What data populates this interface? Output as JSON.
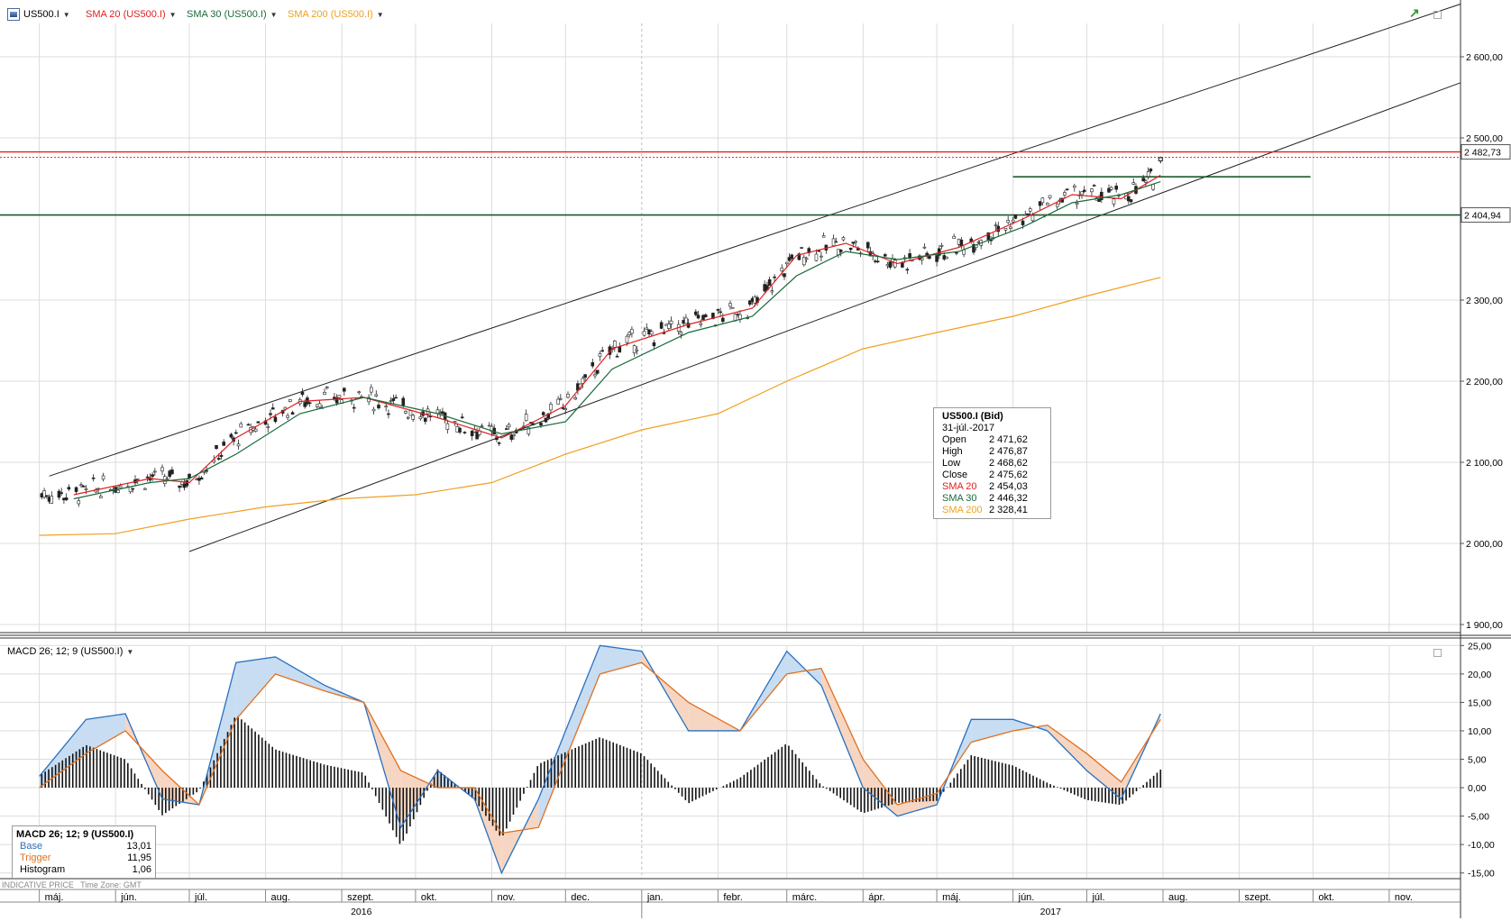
{
  "header": {
    "symbol": "US500.I",
    "indicators": [
      {
        "label": "SMA 20 (US500.I)",
        "color": "#e02020"
      },
      {
        "label": "SMA 30 (US500.I)",
        "color": "#1a6a3a"
      },
      {
        "label": "SMA 200 (US500.I)",
        "color": "#f0a020"
      }
    ]
  },
  "price_panel": {
    "y_ticks": [
      "2 600,00",
      "2 500,00",
      "2 300,00",
      "2 200,00",
      "2 100,00",
      "2 000,00",
      "1 900,00"
    ],
    "price_tags": [
      "2 482,73",
      "2 404,94"
    ],
    "info": {
      "title": "US500.I (Bid)",
      "date": "31-júl.-2017",
      "rows": [
        {
          "k": "Open",
          "v": "2 471,62",
          "color": "#000000"
        },
        {
          "k": "High",
          "v": "2 476,87",
          "color": "#000000"
        },
        {
          "k": "Low",
          "v": "2 468,62",
          "color": "#000000"
        },
        {
          "k": "Close",
          "v": "2 475,62",
          "color": "#000000"
        },
        {
          "k": "SMA 20",
          "v": "2 454,03",
          "color": "#e02020"
        },
        {
          "k": "SMA 30",
          "v": "2 446,32",
          "color": "#1a6a3a"
        },
        {
          "k": "SMA 200",
          "v": "2 328,41",
          "color": "#f0a020"
        }
      ]
    }
  },
  "macd_panel": {
    "title": "MACD 26; 12; 9 (US500.I)",
    "y_ticks": [
      "25,00",
      "20,00",
      "15,00",
      "10,00",
      "5,00",
      "0,00",
      "-5,00",
      "-10,00",
      "-15,00"
    ],
    "legend": {
      "title": "MACD 26; 12; 9 (US500.I)",
      "rows": [
        {
          "k": "Base",
          "v": "13,01",
          "color": "#2a70c0"
        },
        {
          "k": "Trigger",
          "v": "11,95",
          "color": "#e07020"
        },
        {
          "k": "Histogram",
          "v": "1,06",
          "color": "#000000"
        }
      ]
    },
    "footer": "INDICATIVE PRICE   Time Zone: GMT"
  },
  "x_axis": {
    "months": [
      "máj.",
      "jún.",
      "júl.",
      "aug.",
      "szept.",
      "okt.",
      "nov.",
      "dec.",
      "jan.",
      "febr.",
      "márc.",
      "ápr.",
      "máj.",
      "jún.",
      "júl.",
      "aug.",
      "szept.",
      "okt.",
      "nov."
    ],
    "years": [
      "2016",
      "2017"
    ]
  },
  "chart_data": [
    {
      "type": "line",
      "title": "US500.I",
      "series": [
        {
          "name": "SMA 20 (US500.I)",
          "color": "#e02020",
          "x": [
            "2016-05-15",
            "2016-06-15",
            "2016-07-01",
            "2016-07-20",
            "2016-08-15",
            "2016-09-10",
            "2016-10-10",
            "2016-11-05",
            "2016-12-01",
            "2016-12-20",
            "2017-01-20",
            "2017-02-15",
            "2017-03-05",
            "2017-03-25",
            "2017-04-15",
            "2017-05-10",
            "2017-06-05",
            "2017-06-25",
            "2017-07-15",
            "2017-07-31"
          ],
          "values": [
            2060,
            2080,
            2075,
            2130,
            2175,
            2180,
            2155,
            2130,
            2170,
            2240,
            2270,
            2290,
            2355,
            2370,
            2345,
            2365,
            2400,
            2430,
            2425,
            2454
          ]
        },
        {
          "name": "SMA 30 (US500.I)",
          "color": "#1a6a3a",
          "x": [
            "2016-05-15",
            "2016-06-15",
            "2016-07-01",
            "2016-07-20",
            "2016-08-15",
            "2016-09-10",
            "2016-10-10",
            "2016-11-05",
            "2016-12-01",
            "2016-12-20",
            "2017-01-20",
            "2017-02-15",
            "2017-03-05",
            "2017-03-25",
            "2017-04-15",
            "2017-05-10",
            "2017-06-05",
            "2017-06-25",
            "2017-07-15",
            "2017-07-31"
          ],
          "values": [
            2055,
            2075,
            2080,
            2110,
            2160,
            2180,
            2160,
            2135,
            2150,
            2215,
            2260,
            2280,
            2330,
            2360,
            2350,
            2360,
            2390,
            2420,
            2430,
            2446
          ]
        },
        {
          "name": "SMA 200 (US500.I)",
          "color": "#f0a020",
          "x": [
            "2016-05-01",
            "2016-06-01",
            "2016-07-01",
            "2016-08-01",
            "2016-09-01",
            "2016-10-01",
            "2016-11-01",
            "2016-12-01",
            "2017-01-01",
            "2017-02-01",
            "2017-03-01",
            "2017-04-01",
            "2017-05-01",
            "2017-06-01",
            "2017-07-01",
            "2017-07-31"
          ],
          "values": [
            2010,
            2012,
            2030,
            2045,
            2055,
            2060,
            2075,
            2110,
            2140,
            2160,
            2200,
            2240,
            2260,
            2280,
            2305,
            2328
          ]
        }
      ],
      "candles": [
        {
          "x": "2017-07-31",
          "open": 2471.62,
          "high": 2476.87,
          "low": 2468.62,
          "close": 2475.62
        }
      ],
      "horizontal_lines": [
        2482.73,
        2476,
        2404.94
      ],
      "ylim": [
        1890,
        2670
      ],
      "xlim": [
        "2016-05-01",
        "2017-11-30"
      ],
      "grid": true
    },
    {
      "type": "line",
      "title": "MACD 26; 12; 9 (US500.I)",
      "series": [
        {
          "name": "Base",
          "color": "#2a70c0",
          "x": [
            "2016-05-01",
            "2016-05-20",
            "2016-06-05",
            "2016-06-20",
            "2016-07-05",
            "2016-07-20",
            "2016-08-05",
            "2016-08-25",
            "2016-09-10",
            "2016-09-25",
            "2016-10-10",
            "2016-10-25",
            "2016-11-05",
            "2016-11-20",
            "2016-12-01",
            "2016-12-15",
            "2017-01-01",
            "2017-01-20",
            "2017-02-10",
            "2017-03-01",
            "2017-03-15",
            "2017-04-01",
            "2017-04-15",
            "2017-05-01",
            "2017-05-15",
            "2017-06-01",
            "2017-06-15",
            "2017-07-01",
            "2017-07-15",
            "2017-07-31"
          ],
          "values": [
            2,
            12,
            13,
            -2,
            -3,
            22,
            23,
            18,
            15,
            -7,
            3,
            -2,
            -15,
            -2,
            10,
            25,
            24,
            10,
            10,
            24,
            18,
            0,
            -5,
            -3,
            12,
            12,
            10,
            3,
            -2,
            13
          ]
        },
        {
          "name": "Trigger",
          "color": "#e07020",
          "x": [
            "2016-05-01",
            "2016-05-20",
            "2016-06-05",
            "2016-06-20",
            "2016-07-05",
            "2016-07-20",
            "2016-08-05",
            "2016-08-25",
            "2016-09-10",
            "2016-09-25",
            "2016-10-10",
            "2016-10-25",
            "2016-11-05",
            "2016-11-20",
            "2016-12-01",
            "2016-12-15",
            "2017-01-01",
            "2017-01-20",
            "2017-02-10",
            "2017-03-01",
            "2017-03-15",
            "2017-04-01",
            "2017-04-15",
            "2017-05-01",
            "2017-05-15",
            "2017-06-01",
            "2017-06-15",
            "2017-07-01",
            "2017-07-15",
            "2017-07-31"
          ],
          "values": [
            0,
            6,
            10,
            3,
            -3,
            12,
            20,
            17,
            15,
            3,
            0,
            0,
            -8,
            -7,
            5,
            20,
            22,
            15,
            10,
            20,
            21,
            5,
            -3,
            -1,
            8,
            10,
            11,
            6,
            1,
            12
          ]
        }
      ],
      "ylim": [
        -16,
        26
      ],
      "grid": true
    }
  ]
}
